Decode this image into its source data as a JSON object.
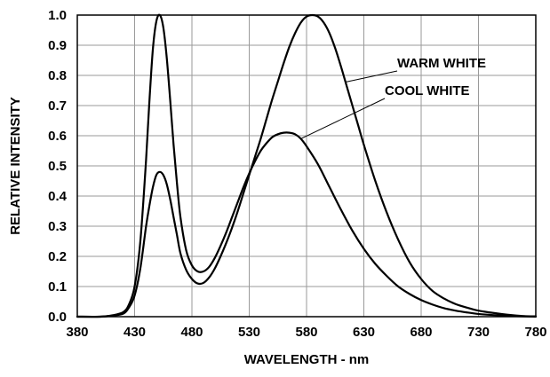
{
  "chart_data": {
    "type": "line",
    "title": "",
    "xlabel": "WAVELENGTH - nm",
    "ylabel": "RELATIVE INTENSITY",
    "xlim": [
      380,
      780
    ],
    "ylim": [
      0,
      1.0
    ],
    "grid": true,
    "xticks": [
      "380",
      "430",
      "480",
      "530",
      "580",
      "630",
      "680",
      "730",
      "780"
    ],
    "yticks": [
      "0.0",
      "0.1",
      "0.2",
      "0.3",
      "0.4",
      "0.5",
      "0.6",
      "0.7",
      "0.8",
      "0.9",
      "1.0"
    ],
    "series": [
      {
        "name": "WARM WHITE",
        "x": [
          380,
          400,
          410,
          420,
          425,
          430,
          435,
          440,
          443,
          446,
          449,
          452,
          455,
          458,
          461,
          464,
          467,
          470,
          475,
          480,
          485,
          490,
          495,
          500,
          505,
          510,
          515,
          520,
          525,
          530,
          535,
          540,
          545,
          550,
          555,
          560,
          565,
          570,
          575,
          580,
          585,
          590,
          595,
          600,
          605,
          610,
          615,
          620,
          625,
          630,
          640,
          650,
          660,
          670,
          680,
          690,
          700,
          710,
          720,
          730,
          740,
          750,
          760,
          770,
          780
        ],
        "y": [
          0.0,
          0.0,
          0.003,
          0.01,
          0.03,
          0.07,
          0.16,
          0.3,
          0.37,
          0.43,
          0.47,
          0.48,
          0.47,
          0.44,
          0.39,
          0.33,
          0.27,
          0.21,
          0.155,
          0.125,
          0.11,
          0.112,
          0.13,
          0.16,
          0.2,
          0.245,
          0.295,
          0.35,
          0.41,
          0.47,
          0.53,
          0.59,
          0.655,
          0.72,
          0.78,
          0.84,
          0.895,
          0.94,
          0.975,
          0.995,
          1.0,
          0.995,
          0.975,
          0.94,
          0.89,
          0.83,
          0.765,
          0.7,
          0.635,
          0.57,
          0.45,
          0.345,
          0.255,
          0.18,
          0.125,
          0.085,
          0.06,
          0.042,
          0.03,
          0.02,
          0.014,
          0.009,
          0.005,
          0.002,
          0.001
        ]
      },
      {
        "name": "COOL WHITE",
        "x": [
          380,
          400,
          410,
          420,
          425,
          430,
          435,
          440,
          443,
          446,
          449,
          452,
          455,
          458,
          461,
          464,
          467,
          470,
          475,
          480,
          485,
          490,
          495,
          500,
          505,
          510,
          515,
          520,
          525,
          530,
          535,
          540,
          545,
          550,
          555,
          560,
          565,
          570,
          575,
          580,
          590,
          600,
          610,
          620,
          630,
          640,
          650,
          660,
          670,
          680,
          690,
          700,
          710,
          720,
          730,
          740,
          750,
          760,
          770,
          780
        ],
        "y": [
          0.0,
          0.0,
          0.004,
          0.015,
          0.04,
          0.1,
          0.25,
          0.52,
          0.72,
          0.89,
          0.98,
          1.0,
          0.96,
          0.86,
          0.72,
          0.57,
          0.44,
          0.33,
          0.22,
          0.17,
          0.15,
          0.15,
          0.165,
          0.195,
          0.235,
          0.28,
          0.33,
          0.38,
          0.43,
          0.475,
          0.515,
          0.55,
          0.575,
          0.595,
          0.605,
          0.61,
          0.61,
          0.605,
          0.59,
          0.565,
          0.505,
          0.43,
          0.355,
          0.285,
          0.225,
          0.175,
          0.135,
          0.1,
          0.075,
          0.055,
          0.04,
          0.028,
          0.02,
          0.014,
          0.009,
          0.006,
          0.004,
          0.002,
          0.001,
          0.0
        ]
      }
    ]
  }
}
